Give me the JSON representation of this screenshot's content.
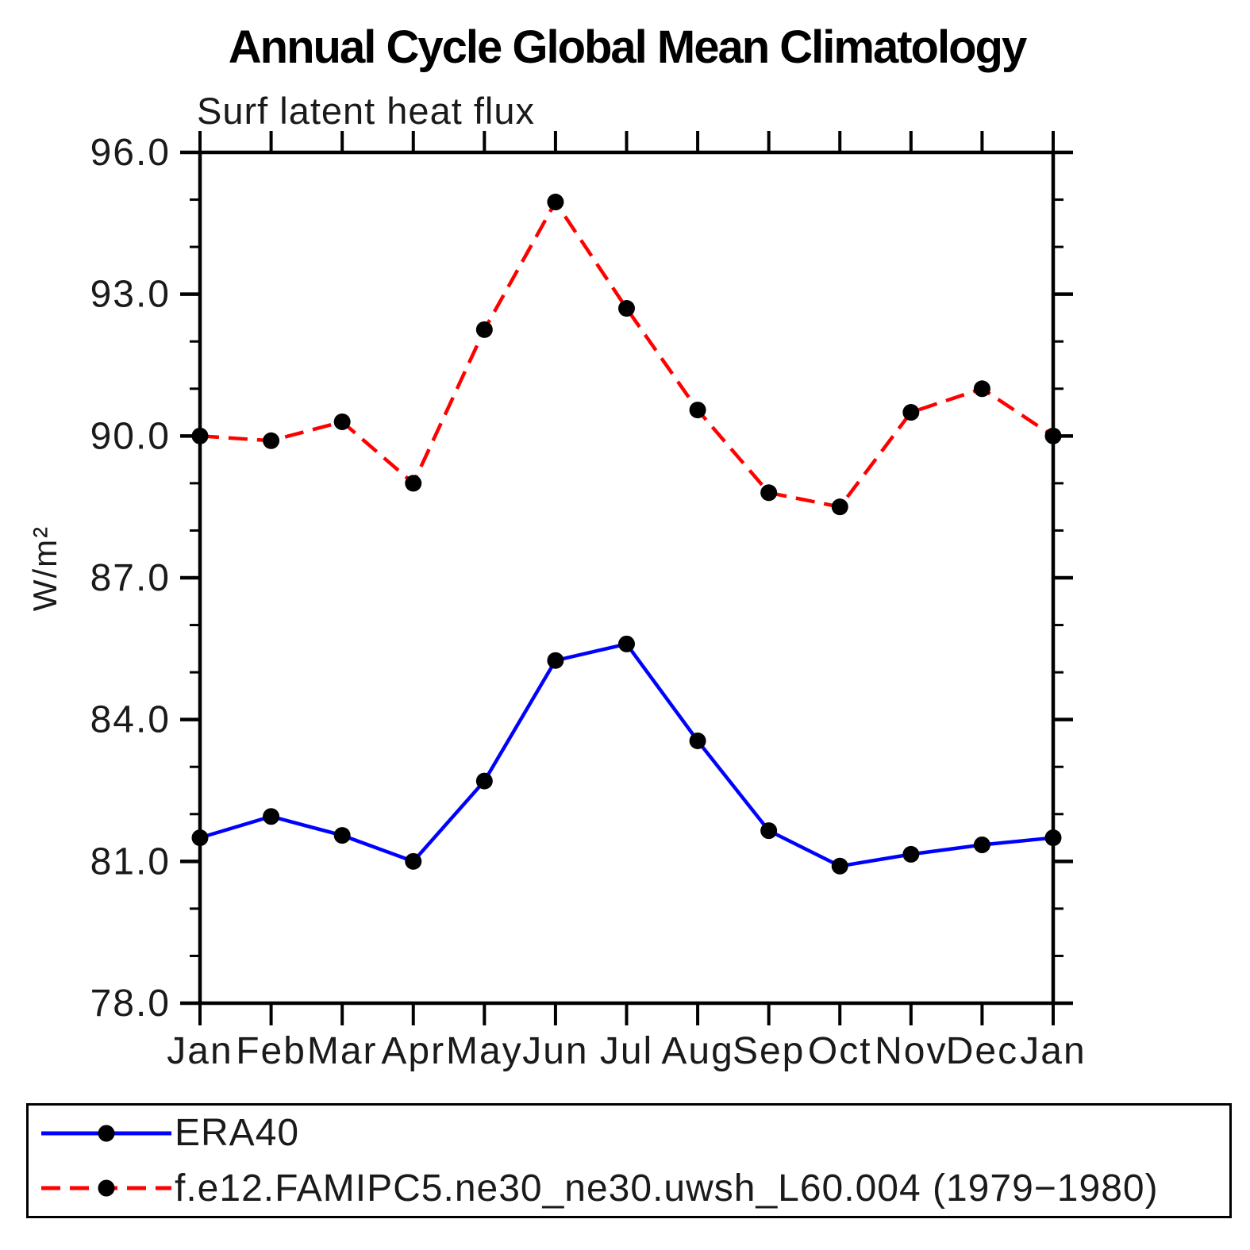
{
  "header": {
    "title": "Annual Cycle Global Mean Climatology",
    "subtitle": "Surf latent heat flux"
  },
  "chart_data": {
    "type": "line",
    "title": "Annual Cycle Global Mean Climatology",
    "subtitle": "Surf latent heat flux",
    "xlabel": "",
    "ylabel": "W/m²",
    "categories": [
      "Jan",
      "Feb",
      "Mar",
      "Apr",
      "May",
      "Jun",
      "Jul",
      "Aug",
      "Sep",
      "Oct",
      "Nov",
      "Dec",
      "Jan"
    ],
    "ylim": [
      78.0,
      96.0
    ],
    "yticks_major": [
      78.0,
      81.0,
      84.0,
      87.0,
      90.0,
      93.0,
      96.0
    ],
    "ytick_labels": [
      "78.0",
      "81.0",
      "84.0",
      "87.0",
      "90.0",
      "93.0",
      "96.0"
    ],
    "ytick_minor_step": 1.0,
    "grid": false,
    "legend_position": "bottom-box",
    "series": [
      {
        "name": "ERA40",
        "color": "#0000ff",
        "line_style": "solid",
        "marker": "circle",
        "marker_color": "#000000",
        "values": [
          81.5,
          81.95,
          81.55,
          81.0,
          82.7,
          85.25,
          85.6,
          83.55,
          81.65,
          80.9,
          81.15,
          81.35,
          81.5
        ]
      },
      {
        "name": "f.e12.FAMIPC5.ne30_ne30.uwsh_L60.004 (1979−1980)",
        "color": "#ff0000",
        "line_style": "dashed",
        "marker": "circle",
        "marker_color": "#000000",
        "values": [
          90.0,
          89.9,
          90.3,
          89.0,
          92.25,
          94.95,
          92.7,
          90.55,
          88.8,
          88.5,
          90.5,
          91.0,
          90.0
        ]
      }
    ]
  },
  "colors": {
    "axis": "#000000",
    "text": "#1a1a1a",
    "background": "#ffffff",
    "era40_line": "#0000ff",
    "model_line": "#ff0000",
    "marker": "#000000"
  }
}
